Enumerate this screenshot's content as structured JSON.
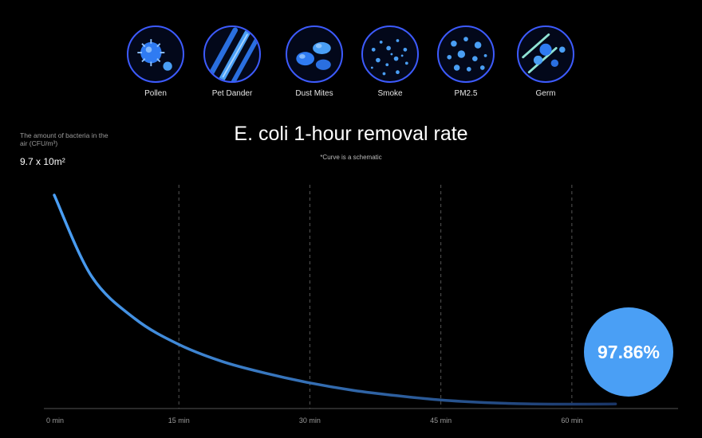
{
  "icons": [
    {
      "label": "Pollen",
      "icon": "pollen-icon"
    },
    {
      "label": "Pet Dander",
      "icon": "pet-dander-icon"
    },
    {
      "label": "Dust Mites",
      "icon": "dust-mites-icon"
    },
    {
      "label": "Smoke",
      "icon": "smoke-icon"
    },
    {
      "label": "PM2.5",
      "icon": "pm25-icon"
    },
    {
      "label": "Germ",
      "icon": "germ-icon"
    }
  ],
  "chart_data": {
    "type": "line",
    "title": "E. coli 1-hour removal rate",
    "subtitle": "*Curve is a schematic",
    "ylabel": "The amount of bacteria in the air (CFU/m³)",
    "y_start_label": "9.7 x 10m²",
    "x_unit": "min",
    "x_ticks": [
      0,
      15,
      30,
      45,
      60
    ],
    "x_tick_labels": [
      "0 min",
      "15 min",
      "30 min",
      "45 min",
      "60 min"
    ],
    "xlim": [
      0,
      65
    ],
    "ylim": [
      0,
      100
    ],
    "grid": "vertical dashed",
    "series": [
      {
        "x": [
          0,
          5,
          10,
          15,
          20,
          25,
          30,
          35,
          40,
          45,
          50,
          55,
          60,
          65
        ],
        "values": [
          100,
          62,
          42,
          30,
          22,
          16.5,
          12,
          8.5,
          6,
          4,
          2.8,
          2.2,
          2.05,
          2.14
        ]
      }
    ],
    "annotation": "97.86%",
    "colors": {
      "line_start": "#4a9ff5",
      "line_end": "#1a3566",
      "badge": "#4a9ff5",
      "grid": "#555555",
      "axis": "#555555",
      "icon_border": "#3d5bff"
    }
  }
}
